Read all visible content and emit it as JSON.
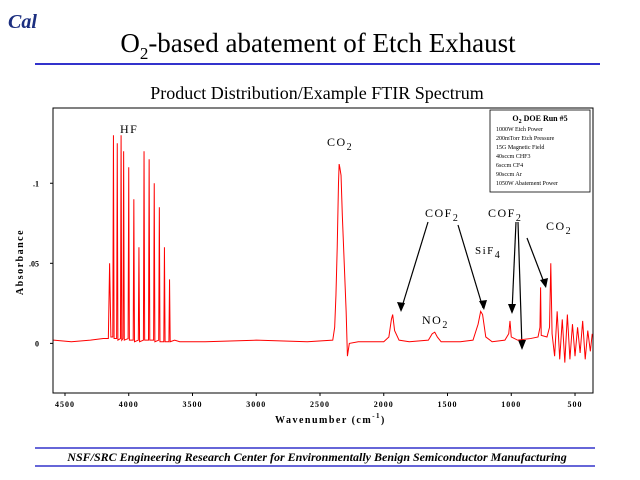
{
  "logo": "Cal",
  "title": {
    "main": "O",
    "sub": "2",
    "rest": "-based abatement of Etch Exhaust"
  },
  "footer": "NSF/SRC Engineering Research Center for Environmentally Benign Semiconductor Manufacturing",
  "chart_data": {
    "type": "line",
    "title": "Product Distribution/Example FTIR Spectrum",
    "x_label": {
      "main": "Wavenumber (cm",
      "sup": "-1",
      "rest": ")"
    },
    "y_label": "Absorbance",
    "color": "#ff0000",
    "xlim": [
      4594,
      359
    ],
    "ylim": [
      -0.031,
      0.147
    ],
    "xticks": [
      4500,
      4000,
      3500,
      3000,
      2500,
      2000,
      1500,
      1000,
      500
    ],
    "yticks": [
      {
        "value": 0.1,
        "label": ".1"
      },
      {
        "value": 0.05,
        "label": ".05"
      },
      0
    ],
    "legend": {
      "title": {
        "main": "O",
        "sub": "2",
        "rest": " DOE Run #5"
      },
      "lines": [
        "1000W Etch Power",
        "200mTorr Etch Pressure",
        "15G Magnetic Field",
        "40sccm CHF3",
        "6sccm CF4",
        "90sccm Ar",
        "1050W Abatement Power"
      ]
    },
    "annotations": [
      {
        "text": "HF"
      },
      {
        "text": "CO",
        "sub": "2"
      },
      {
        "text": "COF",
        "sub": "2"
      },
      {
        "text": "COF",
        "sub": "2"
      },
      {
        "text": "CO",
        "sub": "2"
      },
      {
        "text": "SiF",
        "sub": "4"
      },
      {
        "text": "NO",
        "sub": "2"
      }
    ],
    "x": [
      4590,
      4450,
      4300,
      4200,
      4160,
      4150,
      4140,
      4125,
      4120,
      4115,
      4095,
      4090,
      4085,
      4065,
      4060,
      4055,
      4045,
      4040,
      4035,
      4005,
      4000,
      3995,
      3965,
      3960,
      3955,
      3925,
      3920,
      3915,
      3885,
      3880,
      3875,
      3845,
      3840,
      3835,
      3805,
      3800,
      3795,
      3765,
      3760,
      3755,
      3725,
      3720,
      3715,
      3685,
      3680,
      3675,
      3640,
      3600,
      3400,
      3000,
      2600,
      2400,
      2385,
      2375,
      2365,
      2355,
      2350,
      2345,
      2335,
      2325,
      2310,
      2295,
      2285,
      2270,
      2200,
      2000,
      1960,
      1940,
      1930,
      1915,
      1880,
      1800,
      1650,
      1620,
      1600,
      1580,
      1550,
      1400,
      1300,
      1260,
      1240,
      1225,
      1200,
      1150,
      1050,
      1020,
      1010,
      1000,
      950,
      850,
      790,
      775,
      770,
      765,
      720,
      700,
      690,
      680,
      660,
      640,
      620,
      600,
      580,
      560,
      540,
      520,
      500,
      480,
      460,
      440,
      420,
      400,
      380,
      365
    ],
    "values": [
      0.002,
      0.001,
      0.002,
      0.003,
      0.003,
      0.05,
      0.004,
      0.004,
      0.13,
      0.003,
      0.003,
      0.125,
      0.002,
      0.003,
      0.13,
      0.002,
      0.003,
      0.12,
      0.002,
      0.003,
      0.11,
      0.002,
      0.002,
      0.09,
      0.001,
      0.002,
      0.06,
      0.001,
      0.002,
      0.12,
      0.002,
      0.002,
      0.115,
      0.002,
      0.002,
      0.1,
      0.001,
      0.002,
      0.085,
      0.001,
      0.001,
      0.06,
      0.001,
      0.001,
      0.04,
      0.001,
      0.002,
      0.001,
      0.001,
      0.002,
      0.001,
      0.002,
      0.01,
      0.03,
      0.06,
      0.1,
      0.112,
      0.11,
      0.105,
      0.08,
      0.05,
      0.02,
      -0.008,
      0,
      0.001,
      0.001,
      0.004,
      0.015,
      0.018,
      0.008,
      0.002,
      0.001,
      0.002,
      0.006,
      0.007,
      0.004,
      0.001,
      0.001,
      0.002,
      0.012,
      0.02,
      0.018,
      0.004,
      0.001,
      0.002,
      0.006,
      0.014,
      0.004,
      0.002,
      0.003,
      0.004,
      0.01,
      0.035,
      0.005,
      0.004,
      0.01,
      0.05,
      0.006,
      -0.008,
      0.02,
      -0.01,
      0.015,
      -0.012,
      0.018,
      -0.01,
      0.012,
      -0.008,
      0.01,
      -0.006,
      0.014,
      -0.01,
      0.008,
      -0.005,
      0.006
    ]
  }
}
